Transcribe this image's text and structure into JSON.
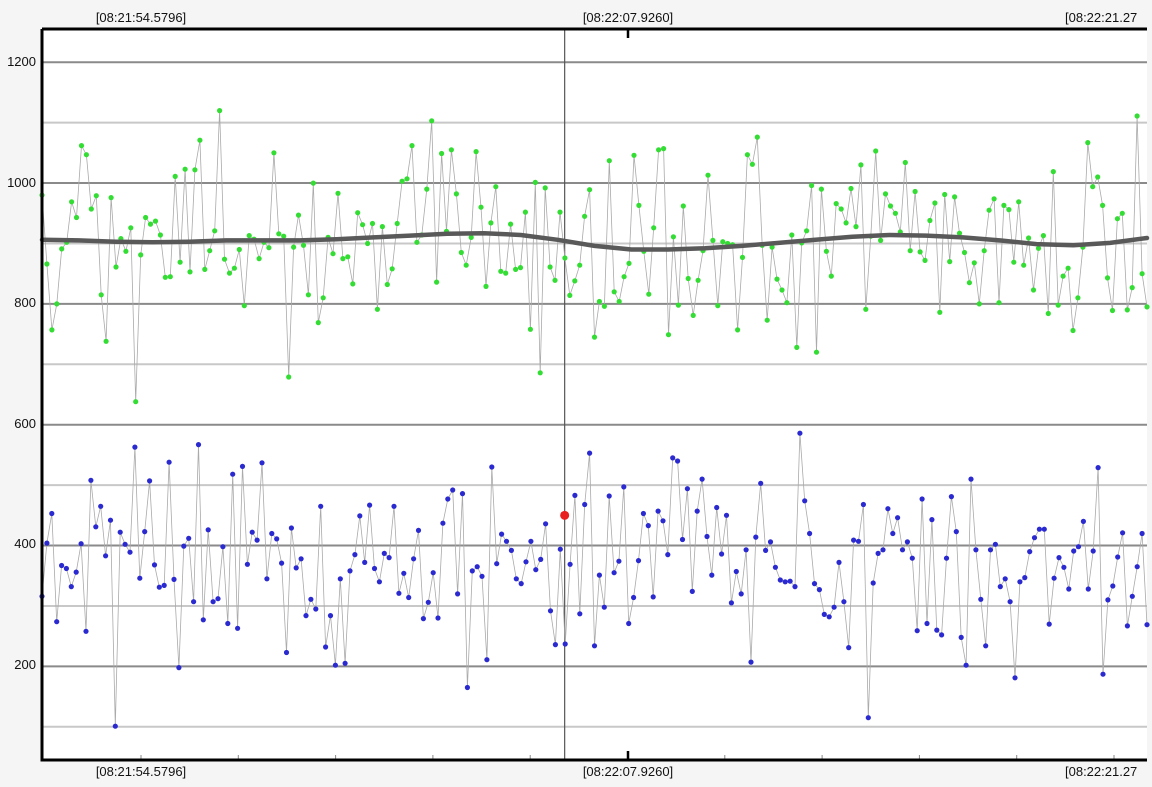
{
  "chart_data": {
    "type": "scatter",
    "title": "",
    "xlabel": "",
    "ylabel": "",
    "ylim": [
      45,
      1255
    ],
    "grid": true,
    "x_tick_labels": [
      "[08:21:54.5796]",
      "[08:22:07.9260]",
      "[08:22:21.27"
    ],
    "y_tick_labels": [
      "200",
      "400",
      "600",
      "800",
      "1000",
      "1200"
    ],
    "y_ticks": [
      200,
      400,
      600,
      800,
      1000,
      1200
    ],
    "y_minor_grid": [
      100,
      300,
      500,
      700,
      900,
      1100
    ],
    "x_range_s": [
      0,
      30
    ],
    "cursor": {
      "x_s": 14.19,
      "marker_y": 450,
      "marker_color": "#e82020"
    },
    "series": [
      {
        "color": "#33dd33",
        "connector_color": "#aaaaaa",
        "values": [
          980,
          866,
          757,
          800,
          891,
          902,
          969,
          943,
          1062,
          1047,
          957,
          979,
          815,
          738,
          976,
          861,
          908,
          887,
          926,
          638,
          881,
          943,
          932,
          937,
          914,
          844,
          845,
          1011,
          869,
          1023,
          853,
          1022,
          1071,
          857,
          888,
          921,
          1120,
          874,
          851,
          859,
          890,
          797,
          913,
          907,
          875,
          902,
          893,
          1050,
          916,
          912,
          679,
          894,
          947,
          897,
          815,
          1000,
          769,
          810,
          910,
          883,
          983,
          875,
          878,
          833,
          951,
          931,
          900,
          933,
          791,
          928,
          832,
          858,
          933,
          1003,
          1007,
          1062,
          902,
          914,
          990,
          1103,
          836,
          1049,
          920,
          1055,
          982,
          885,
          864,
          910,
          1052,
          960,
          829,
          934,
          994,
          854,
          851,
          932,
          857,
          860,
          952,
          758,
          1001,
          686,
          992,
          861,
          839,
          952,
          876,
          814,
          838,
          864,
          945,
          989,
          745,
          804,
          796,
          1037,
          820,
          804,
          845,
          867,
          1046,
          963,
          887,
          816,
          926,
          1055,
          1057,
          749,
          911,
          798,
          962,
          842,
          781,
          839,
          888,
          1013,
          905,
          797,
          903,
          900,
          898,
          757,
          877,
          1047,
          1031,
          1076,
          897,
          773,
          894,
          841,
          823,
          802,
          914,
          728,
          901,
          921,
          996,
          720,
          990,
          887,
          846,
          966,
          957,
          934,
          991,
          928,
          1030,
          791,
          912,
          1053,
          905,
          982,
          962,
          950,
          919,
          1034,
          888,
          986,
          886,
          872,
          938,
          967,
          786,
          981,
          870,
          977,
          917,
          885,
          835,
          868,
          800,
          888,
          955,
          974,
          802,
          963,
          956,
          869,
          969,
          864,
          909,
          823,
          892,
          913,
          784,
          1019,
          798,
          846,
          859,
          756,
          810,
          894,
          1067,
          994,
          1010,
          963,
          843,
          789,
          941,
          950,
          790,
          827,
          1111,
          850,
          795
        ]
      },
      {
        "color": "#2a2ad0",
        "connector_color": "#aaaaaa",
        "values": [
          316,
          404,
          453,
          274,
          367,
          362,
          332,
          356,
          403,
          258,
          508,
          431,
          465,
          383,
          442,
          101,
          422,
          402,
          389,
          563,
          346,
          423,
          507,
          368,
          331,
          334,
          538,
          344,
          198,
          399,
          412,
          307,
          567,
          277,
          426,
          307,
          312,
          398,
          271,
          518,
          263,
          531,
          369,
          422,
          409,
          537,
          345,
          420,
          411,
          371,
          223,
          429,
          363,
          378,
          284,
          311,
          295,
          465,
          232,
          284,
          202,
          345,
          205,
          358,
          385,
          449,
          372,
          467,
          362,
          340,
          387,
          380,
          465,
          321,
          354,
          314,
          378,
          425,
          279,
          306,
          355,
          280,
          437,
          477,
          492,
          320,
          486,
          165,
          358,
          365,
          349,
          211,
          530,
          370,
          419,
          407,
          392,
          345,
          337,
          373,
          407,
          360,
          377,
          436,
          292,
          236,
          394,
          237,
          369,
          483,
          287,
          468,
          553,
          234,
          351,
          298,
          482,
          355,
          374,
          497,
          271,
          314,
          375,
          453,
          433,
          315,
          457,
          441,
          385,
          545,
          540,
          410,
          494,
          324,
          457,
          510,
          415,
          351,
          463,
          386,
          450,
          305,
          357,
          320,
          393,
          207,
          414,
          503,
          392,
          406,
          364,
          343,
          340,
          341,
          332,
          586,
          474,
          420,
          337,
          327,
          286,
          282,
          298,
          372,
          307,
          231,
          409,
          407,
          468,
          115,
          338,
          387,
          393,
          461,
          420,
          446,
          393,
          406,
          379,
          259,
          477,
          271,
          443,
          260,
          252,
          379,
          481,
          423,
          248,
          202,
          510,
          393,
          311,
          234,
          393,
          402,
          332,
          345,
          307,
          181,
          340,
          347,
          390,
          413,
          427,
          427,
          270,
          346,
          380,
          364,
          328,
          391,
          398,
          440,
          328,
          391,
          529,
          187,
          310,
          333,
          381,
          421,
          267,
          316,
          365,
          420,
          269
        ]
      },
      {
        "type": "line",
        "color": "#595959",
        "x": [
          0,
          1,
          2,
          3,
          4,
          5,
          6,
          7,
          8,
          9,
          10,
          11,
          12,
          13,
          14,
          15,
          16,
          17,
          18,
          19,
          20,
          21,
          22,
          23,
          24,
          25,
          26,
          27,
          28,
          29,
          30
        ],
        "values": [
          906,
          905,
          903,
          902,
          903,
          905,
          905,
          905,
          907,
          910,
          913,
          916,
          917,
          914,
          906,
          896,
          890,
          890,
          892,
          896,
          901,
          906,
          911,
          914,
          913,
          910,
          905,
          899,
          897,
          901,
          909
        ]
      }
    ]
  }
}
